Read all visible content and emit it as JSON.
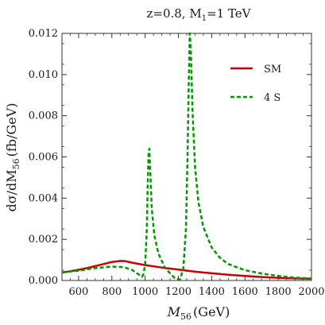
{
  "chart_data": {
    "type": "line",
    "title": "z=0.8,  M",
    "title_sub": "1",
    "title_tail": "=1 TeV",
    "xlabel": "M",
    "xlabel_sub": "56",
    "xlabel_unit": "(GeV)",
    "ylabel": "dσ/dM",
    "ylabel_sub": "56",
    "ylabel_unit": "(fb/GeV)",
    "xlim": [
      500,
      2000
    ],
    "ylim": [
      0,
      0.012
    ],
    "xticks": [
      "600",
      "800",
      "1000",
      "1200",
      "1400",
      "1600",
      "1800",
      "2000"
    ],
    "yticks": [
      "0.000",
      "0.002",
      "0.004",
      "0.006",
      "0.008",
      "0.010",
      "0.012"
    ],
    "xtick_values": [
      600,
      800,
      1000,
      1200,
      1400,
      1600,
      1800,
      2000
    ],
    "ytick_values": [
      0,
      0.002,
      0.004,
      0.006,
      0.008,
      0.01,
      0.012
    ],
    "legend_position": "top-right",
    "series": [
      {
        "name": "SM",
        "color": "#cc0000",
        "style": "solid",
        "points": [
          [
            500,
            0.00038
          ],
          [
            550,
            0.00045
          ],
          [
            600,
            0.00052
          ],
          [
            650,
            0.0006
          ],
          [
            700,
            0.0007
          ],
          [
            750,
            0.0008
          ],
          [
            800,
            0.0009
          ],
          [
            850,
            0.00095
          ],
          [
            880,
            0.00094
          ],
          [
            920,
            0.00087
          ],
          [
            1000,
            0.00075
          ],
          [
            1100,
            0.00063
          ],
          [
            1200,
            0.00053
          ],
          [
            1300,
            0.00043
          ],
          [
            1400,
            0.00035
          ],
          [
            1500,
            0.00028
          ],
          [
            1600,
            0.00022
          ],
          [
            1700,
            0.00017
          ],
          [
            1800,
            0.00013
          ],
          [
            1900,
            0.0001
          ],
          [
            2000,
            8e-05
          ]
        ]
      },
      {
        "name": "4 S",
        "color": "#009900",
        "style": "dashed",
        "points": [
          [
            500,
            0.0004
          ],
          [
            600,
            0.00048
          ],
          [
            700,
            0.0006
          ],
          [
            800,
            0.00068
          ],
          [
            870,
            0.00065
          ],
          [
            920,
            0.00052
          ],
          [
            960,
            0.0003
          ],
          [
            980,
            0.00018
          ],
          [
            990,
            0.0003
          ],
          [
            1000,
            0.0008
          ],
          [
            1010,
            0.0025
          ],
          [
            1015,
            0.0045
          ],
          [
            1020,
            0.0061
          ],
          [
            1025,
            0.0064
          ],
          [
            1030,
            0.0055
          ],
          [
            1040,
            0.0035
          ],
          [
            1055,
            0.0022
          ],
          [
            1080,
            0.0013
          ],
          [
            1120,
            0.0006
          ],
          [
            1180,
            0.0001
          ],
          [
            1210,
            5e-05
          ],
          [
            1230,
            0.0006
          ],
          [
            1245,
            0.0025
          ],
          [
            1255,
            0.006
          ],
          [
            1262,
            0.0095
          ],
          [
            1268,
            0.012
          ],
          [
            1275,
            0.0112
          ],
          [
            1285,
            0.0082
          ],
          [
            1300,
            0.0055
          ],
          [
            1320,
            0.0038
          ],
          [
            1350,
            0.0026
          ],
          [
            1400,
            0.0016
          ],
          [
            1450,
            0.0011
          ],
          [
            1500,
            0.0008
          ],
          [
            1600,
            0.0005
          ],
          [
            1700,
            0.00034
          ],
          [
            1800,
            0.00022
          ],
          [
            1900,
            0.00014
          ],
          [
            2000,
            0.0001
          ]
        ]
      }
    ]
  }
}
